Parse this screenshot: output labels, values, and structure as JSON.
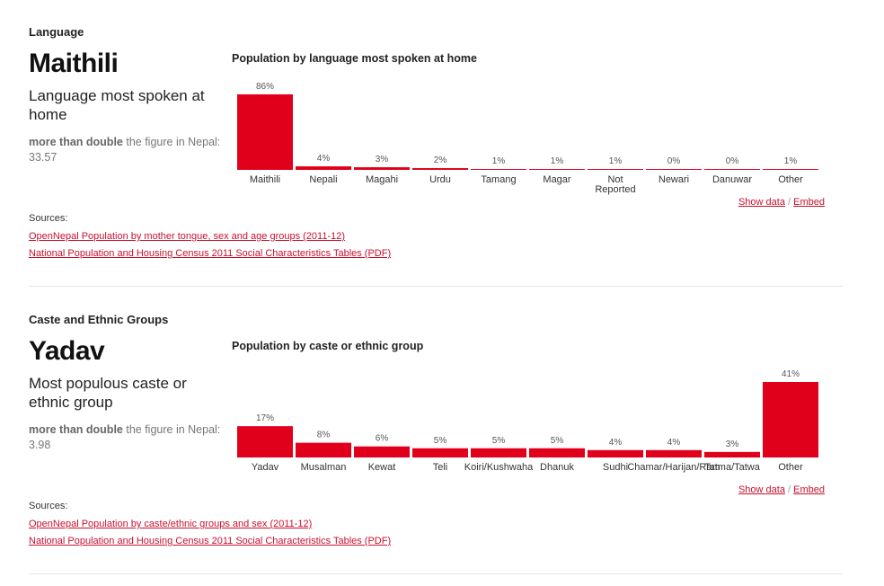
{
  "language": {
    "section_title": "Language",
    "headline": "Maithili",
    "description": "Language most spoken at home",
    "compare_strong": "more than double",
    "compare_rest": "the figure in Nepal: 33.57",
    "chart_title": "Population by language most spoken at home",
    "show_data": "Show data",
    "separator": "/",
    "embed": "Embed",
    "sources_label": "Sources:",
    "sources": [
      "OpenNepal Population by mother tongue, sex and age groups (2011-12)",
      "National Population and Housing Census 2011 Social Characteristics Tables (PDF)"
    ]
  },
  "caste": {
    "section_title": "Caste and Ethnic Groups",
    "headline": "Yadav",
    "description": "Most populous caste or ethnic group",
    "compare_strong": "more than double",
    "compare_rest": "the figure in Nepal: 3.98",
    "chart_title": "Population by caste or ethnic group",
    "show_data": "Show data",
    "separator": "/",
    "embed": "Embed",
    "sources_label": "Sources:",
    "sources": [
      "OpenNepal Population by caste/ethnic groups and sex (2011-12)",
      "National Population and Housing Census 2011 Social Characteristics Tables (PDF)"
    ]
  },
  "colors": {
    "bar": "#e0001b",
    "link": "#c8102e"
  },
  "chart_data": [
    {
      "type": "bar",
      "title": "Population by language most spoken at home",
      "categories": [
        "Maithili",
        "Nepali",
        "Magahi",
        "Urdu",
        "Tamang",
        "Magar",
        "Not Reported",
        "Newari",
        "Danuwar",
        "Other"
      ],
      "values": [
        86,
        4,
        3,
        2,
        1,
        1,
        1,
        0,
        0,
        1
      ],
      "value_labels": [
        "86%",
        "4%",
        "3%",
        "2%",
        "1%",
        "1%",
        "1%",
        "0%",
        "0%",
        "1%"
      ],
      "unit": "%",
      "ylim": [
        0,
        86
      ],
      "grid": false,
      "xlabel": "",
      "ylabel": ""
    },
    {
      "type": "bar",
      "title": "Population by caste or ethnic group",
      "categories": [
        "Yadav",
        "Musalman",
        "Kewat",
        "Teli",
        "Koiri/Kushwaha",
        "Dhanuk",
        "Sudhi",
        "Chamar/Harijan/Ram",
        "Tatma/Tatwa",
        "Other"
      ],
      "values": [
        17,
        8,
        6,
        5,
        5,
        5,
        4,
        4,
        3,
        41
      ],
      "value_labels": [
        "17%",
        "8%",
        "6%",
        "5%",
        "5%",
        "5%",
        "4%",
        "4%",
        "3%",
        "41%"
      ],
      "unit": "%",
      "ylim": [
        0,
        41
      ],
      "grid": false,
      "xlabel": "",
      "ylabel": ""
    }
  ]
}
